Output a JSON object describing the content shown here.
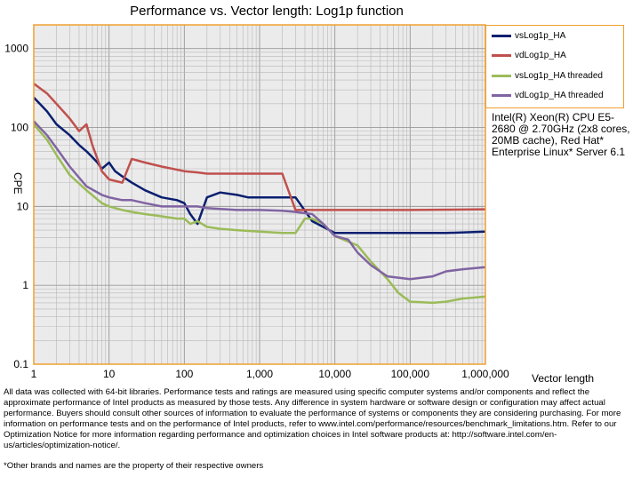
{
  "chart_data": {
    "type": "line",
    "title": "Performance vs. Vector length: Log1p function",
    "xlabel": "Vector length",
    "ylabel": "CPE",
    "x_scale": "log",
    "y_scale": "log",
    "xlim": [
      1,
      1000000
    ],
    "ylim": [
      0.1,
      2000
    ],
    "x_ticks": [
      "1",
      "10",
      "100",
      "1,000",
      "10,000",
      "100,000",
      "1,000,000"
    ],
    "y_ticks": [
      "0.1",
      "1",
      "10",
      "100",
      "1000"
    ],
    "grid": true,
    "legend_position": "top-right",
    "series": [
      {
        "name": "vsLog1p_HA",
        "color": "#0a1f70",
        "x": [
          1,
          1.5,
          2,
          3,
          4,
          5,
          6,
          7,
          8,
          9,
          10,
          12,
          15,
          20,
          30,
          50,
          80,
          100,
          120,
          150,
          200,
          300,
          500,
          700,
          1000,
          1500,
          2000,
          3000,
          5000,
          10000,
          50000,
          100000,
          300000,
          1000000
        ],
        "y": [
          240,
          160,
          110,
          80,
          60,
          50,
          42,
          36,
          30,
          33,
          36,
          28,
          24,
          20,
          16,
          13,
          12,
          11,
          8,
          6,
          13,
          15,
          14,
          13,
          13,
          13,
          13,
          13,
          6.5,
          4.6,
          4.6,
          4.6,
          4.6,
          4.8
        ]
      },
      {
        "name": "vdLog1p_HA",
        "color": "#c0504d",
        "x": [
          1,
          1.5,
          2,
          3,
          4,
          5,
          6,
          7,
          8,
          10,
          15,
          20,
          30,
          50,
          100,
          150,
          200,
          300,
          500,
          1000,
          2000,
          3000,
          5000,
          10000,
          100000,
          1000000
        ],
        "y": [
          360,
          270,
          200,
          130,
          90,
          110,
          60,
          40,
          28,
          22,
          20,
          40,
          36,
          32,
          28,
          27,
          26,
          26,
          26,
          26,
          26,
          9,
          9,
          9,
          9,
          9.2
        ]
      },
      {
        "name": "vsLog1p_HA threaded",
        "color": "#9bbb59",
        "x": [
          1,
          1.5,
          2,
          3,
          5,
          8,
          10,
          15,
          20,
          30,
          50,
          80,
          100,
          120,
          150,
          200,
          300,
          500,
          1000,
          2000,
          3000,
          4000,
          5000,
          7000,
          10000,
          20000,
          30000,
          50000,
          70000,
          100000,
          200000,
          300000,
          500000,
          1000000
        ],
        "y": [
          110,
          70,
          45,
          25,
          16,
          11,
          10,
          9,
          8.5,
          8,
          7.5,
          7,
          7,
          6,
          6.5,
          5.5,
          5.2,
          5,
          4.8,
          4.6,
          4.6,
          7,
          7,
          6,
          4.2,
          3.2,
          2,
          1.2,
          0.8,
          0.62,
          0.6,
          0.62,
          0.68,
          0.72
        ]
      },
      {
        "name": "vdLog1p_HA threaded",
        "color": "#8064a2",
        "x": [
          1,
          1.5,
          2,
          3,
          5,
          8,
          10,
          15,
          20,
          30,
          50,
          80,
          100,
          150,
          200,
          300,
          500,
          1000,
          2000,
          3000,
          5000,
          7000,
          10000,
          15000,
          20000,
          30000,
          50000,
          100000,
          200000,
          300000,
          500000,
          1000000
        ],
        "y": [
          120,
          80,
          55,
          32,
          18,
          14,
          13,
          12,
          12,
          11,
          10,
          10,
          10,
          10,
          9.5,
          9.3,
          9,
          9,
          8.8,
          8.5,
          8,
          6,
          4.2,
          3.8,
          2.6,
          1.8,
          1.3,
          1.2,
          1.3,
          1.5,
          1.6,
          1.7
        ]
      }
    ]
  },
  "system_info": "Intel(R) Xeon(R) CPU E5-2680 @ 2.70GHz (2x8 cores, 20MB cache), Red Hat* Enterprise Linux* Server 6.1",
  "disclaimer": "All data was collected with 64-bit libraries. Performance tests and ratings are measured using specific computer systems and/or components and reflect the approximate performance of Intel products as measured by those tests. Any difference in system hardware or software design or configuration may affect actual performance. Buyers should consult other sources of information to evaluate the performance of systems or components they are considering purchasing. For more information on performance tests and on the performance of Intel products, refer to www.intel.com/performance/resources/benchmark_limitations.htm. Refer to our Optimization Notice for more information regarding performance and optimization choices in Intel software products at: http://software.intel.com/en-us/articles/optimization-notice/.",
  "footnote": "*Other brands and names are the property of their respective owners",
  "colors": {
    "frame": "#f0a030",
    "plot_bg": "#ebebeb",
    "grid": "#b8b8b8"
  }
}
